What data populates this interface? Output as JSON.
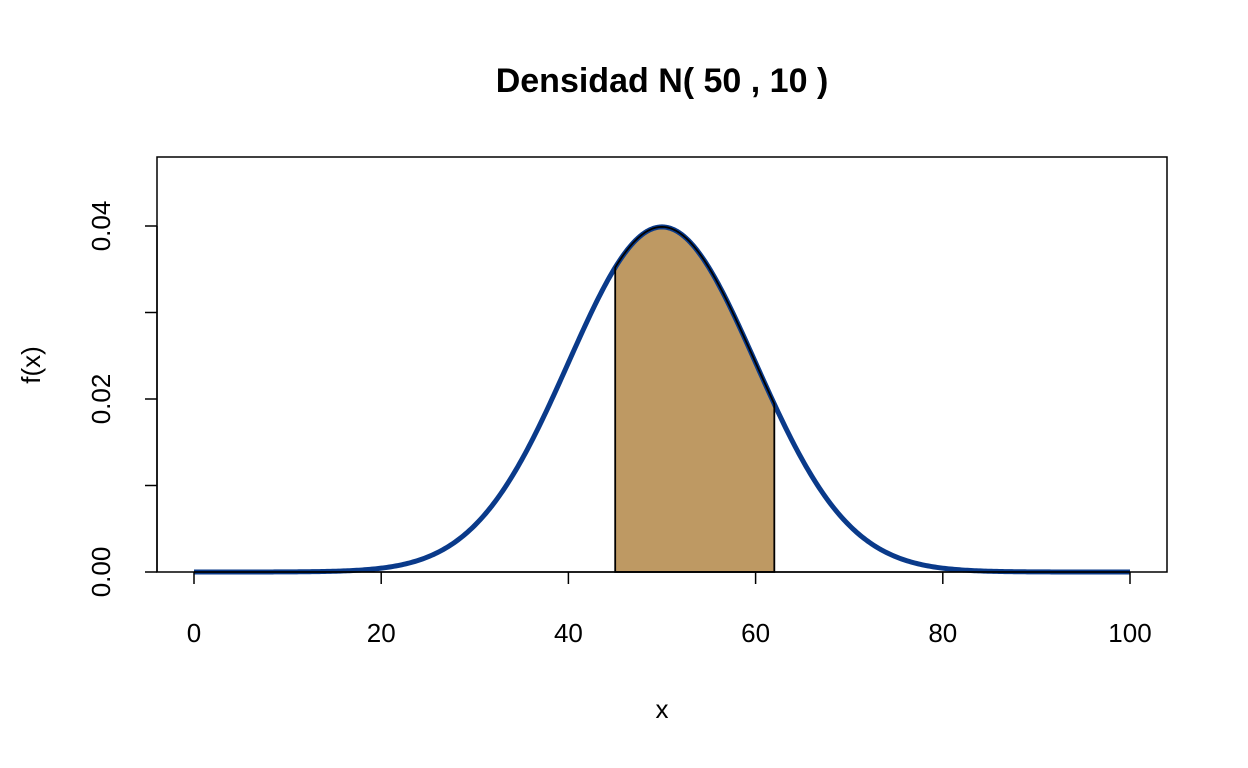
{
  "chart_data": {
    "type": "line",
    "title": "Densidad N( 50 , 10 )",
    "xlabel": "x",
    "ylabel": "f(x)",
    "xlim": [
      0,
      100
    ],
    "ylim": [
      0,
      0.04
    ],
    "x_ticks": [
      0,
      20,
      40,
      60,
      80,
      100
    ],
    "x_tick_labels": [
      "0",
      "20",
      "40",
      "60",
      "80",
      "100"
    ],
    "y_ticks": [
      0,
      0.01,
      0.02,
      0.03,
      0.04
    ],
    "y_tick_labels": [
      "0.00",
      "0.02",
      "0.04"
    ],
    "y_labeled_ticks": [
      0,
      0.02,
      0.04
    ],
    "grid": false,
    "series": [
      {
        "distribution": "normal",
        "mean": 50,
        "sd": 10,
        "x_range": [
          0,
          100
        ],
        "color": "#0a3a8a"
      }
    ],
    "shaded_region": {
      "from": 45,
      "to": 62,
      "fill": "#be9963",
      "stroke": "#000000"
    }
  }
}
